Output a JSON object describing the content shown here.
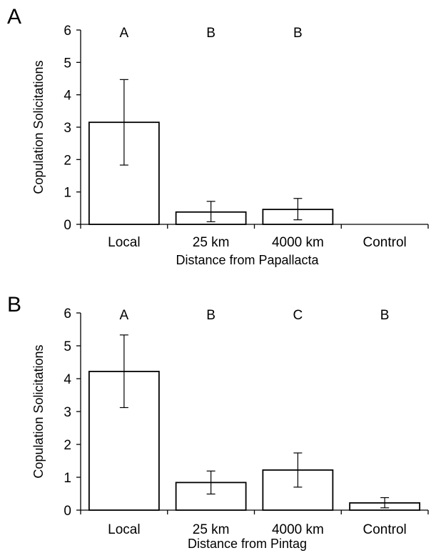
{
  "chart_data": [
    {
      "type": "bar",
      "panel_label": "A",
      "categories": [
        "Local",
        "25 km",
        "4000 km",
        "Control"
      ],
      "values": [
        3.15,
        0.38,
        0.46,
        0
      ],
      "error_low": [
        1.83,
        0.08,
        0.14,
        null
      ],
      "error_high": [
        4.47,
        0.71,
        0.8,
        null
      ],
      "significance_letters": [
        "A",
        "B",
        "B",
        ""
      ],
      "xlabel": "Distance from Papallacta",
      "ylabel": "Copulation Solicitations",
      "ylim": [
        0,
        6
      ],
      "yticks": [
        "0",
        "1",
        "2",
        "3",
        "4",
        "5",
        "6"
      ],
      "grid": false,
      "bar_fill": "#ffffff",
      "bar_stroke": "#000000"
    },
    {
      "type": "bar",
      "panel_label": "B",
      "categories": [
        "Local",
        "25 km",
        "4000 km",
        "Control"
      ],
      "values": [
        4.22,
        0.84,
        1.22,
        0.22
      ],
      "error_low": [
        3.12,
        0.49,
        0.7,
        0.07
      ],
      "error_high": [
        5.33,
        1.19,
        1.74,
        0.38
      ],
      "significance_letters": [
        "A",
        "B",
        "C",
        "B"
      ],
      "xlabel": "Distance from Pintag",
      "ylabel": "Copulation Solicitations",
      "ylim": [
        0,
        6
      ],
      "yticks": [
        "0",
        "1",
        "2",
        "3",
        "4",
        "5",
        "6"
      ],
      "grid": false,
      "bar_fill": "#ffffff",
      "bar_stroke": "#000000"
    }
  ]
}
